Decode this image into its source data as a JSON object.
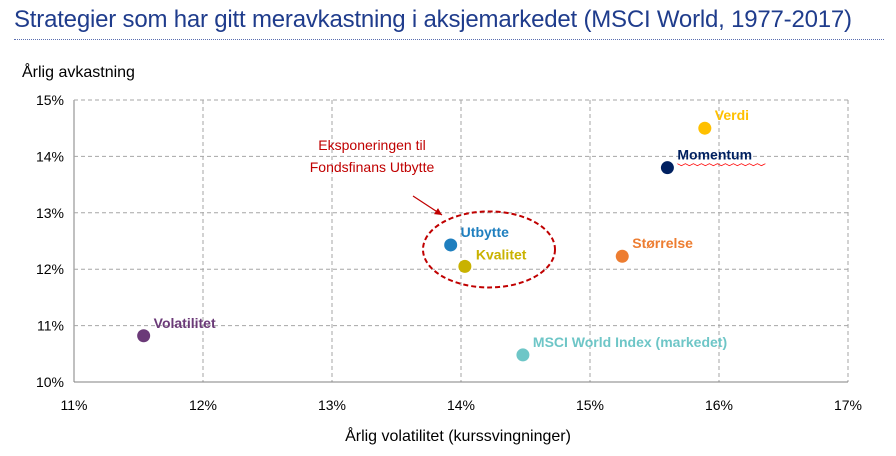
{
  "header": {
    "title": "Strategier som har gitt meravkastning i aksjemarkedet (MSCI World, 1977-2017)"
  },
  "chart_data": {
    "type": "scatter",
    "title": "Strategier som har gitt meravkastning i aksjemarkedet (MSCI World, 1977-2017)",
    "xlabel": "Årlig volatilitet (kurssvingninger)",
    "ylabel": "Årlig avkastning",
    "xlim": [
      11,
      17
    ],
    "ylim": [
      10,
      15
    ],
    "x_ticks": [
      "11%",
      "12%",
      "13%",
      "14%",
      "15%",
      "16%",
      "17%"
    ],
    "y_ticks": [
      "10%",
      "11%",
      "12%",
      "13%",
      "14%",
      "15%"
    ],
    "grid": true,
    "points": [
      {
        "name": "Verdi",
        "x": 15.89,
        "y": 14.5,
        "color": "#ffc000",
        "label_pos": "upper-right"
      },
      {
        "name": "Momentum",
        "x": 15.6,
        "y": 13.8,
        "color": "#002060",
        "label_pos": "upper-right"
      },
      {
        "name": "Størrelse",
        "x": 15.25,
        "y": 12.23,
        "color": "#ed7d31",
        "label_pos": "upper-right"
      },
      {
        "name": "Utbytte",
        "x": 13.92,
        "y": 12.43,
        "color": "#1f7fbf",
        "label_pos": "upper-right"
      },
      {
        "name": "Kvalitet",
        "x": 14.03,
        "y": 12.05,
        "color": "#c9b200",
        "label_pos": "right"
      },
      {
        "name": "MSCI World Index (markedet)",
        "x": 14.48,
        "y": 10.48,
        "color": "#6ec6c7",
        "label_pos": "upper-right"
      },
      {
        "name": "Volatilitet",
        "x": 11.54,
        "y": 10.82,
        "color": "#6b3a78",
        "label_pos": "upper-right"
      }
    ],
    "annotation": {
      "lines": [
        "Eksponeringen til",
        "Fondsfinans Utbytte"
      ],
      "color": "#c00000",
      "target_center": [
        14.0,
        12.35
      ]
    }
  }
}
